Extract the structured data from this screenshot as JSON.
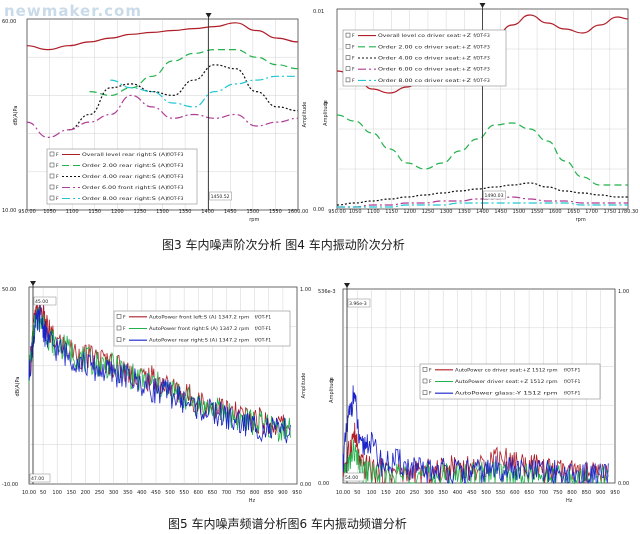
{
  "watermark": "newmaker.com",
  "captions": {
    "top": "图3 车内噪声阶次分析  图4 车内振动阶次分析",
    "bottom": "图5 车内噪声频谱分析图6 车内振动频谱分析"
  },
  "colors": {
    "red": "#b01e28",
    "green": "#22b24c",
    "black": "#111111",
    "purple": "#b03c96",
    "cyan": "#22c6d2",
    "blue": "#1a22c8",
    "grid": "#c8c8c8"
  },
  "chart_data": [
    {
      "type": "line",
      "xlabel": "rpm",
      "ylabel": [
        "Pa",
        "dB(A)"
      ],
      "right_label": "Amplitude",
      "yticks": [
        "60.00",
        "10.00"
      ],
      "xticks": [
        "950.00",
        "1050",
        "1100",
        "1150",
        "1200",
        "1250",
        "1300",
        "1350",
        "1400",
        "1450",
        "1500",
        "1550",
        "1600.00"
      ],
      "cursor_label": "1450.52",
      "x": [
        950,
        1000,
        1050,
        1100,
        1150,
        1200,
        1250,
        1300,
        1350,
        1400,
        1450,
        1500,
        1550,
        1600
      ],
      "ylim": [
        10,
        60
      ],
      "legend": [
        {
          "mark": "F",
          "text": "Overall level rear right:S (A)",
          "suffix": "f/OT-F3"
        },
        {
          "mark": "F",
          "text": "Order 2.00 rear right:S (A)",
          "suffix": "f/OT-F3"
        },
        {
          "mark": "F",
          "text": "Order 4.00 rear right:S (A)",
          "suffix": "f/OT-F3"
        },
        {
          "mark": "F",
          "text": "Order 6.00 front right:S (A)",
          "suffix": "f/OT-F3"
        },
        {
          "mark": "F",
          "text": "Order 8.00 rear right:S (A)",
          "suffix": "f/OT-F3"
        }
      ],
      "series": [
        {
          "color": "red",
          "style": "solid",
          "values": [
            53,
            52,
            53,
            54,
            55,
            56,
            56.5,
            57,
            57.5,
            58,
            59,
            57,
            55,
            54
          ]
        },
        {
          "color": "green",
          "style": "dashed",
          "values": [
            null,
            null,
            null,
            41,
            40,
            42,
            45,
            49,
            51,
            52,
            52,
            50,
            48,
            47
          ]
        },
        {
          "color": "black",
          "style": "dotted",
          "values": [
            null,
            null,
            31,
            35,
            42,
            43,
            41,
            40,
            44,
            48,
            47,
            41,
            37,
            36
          ]
        },
        {
          "color": "purple",
          "style": "dashdot",
          "values": [
            33,
            29,
            31,
            33,
            35,
            40,
            37,
            34,
            35,
            34,
            35,
            32,
            33,
            34
          ]
        },
        {
          "color": "cyan",
          "style": "dashdot",
          "values": [
            null,
            null,
            null,
            null,
            44,
            42,
            41,
            38,
            37,
            41,
            43,
            44,
            45,
            45
          ]
        }
      ]
    },
    {
      "type": "line",
      "xlabel": "rpm",
      "ylabel": [
        "g",
        "Amplitude"
      ],
      "yticks": [
        "0.01",
        "0.00"
      ],
      "xticks": [
        "950.00",
        "1050",
        "1100",
        "1150",
        "1200",
        "1250",
        "1300",
        "1350",
        "1400",
        "1450",
        "1500",
        "1550",
        "1600",
        "1650",
        "1700",
        "1750",
        "1780.30"
      ],
      "cursor_label": "1490.03",
      "x": [
        950,
        1000,
        1050,
        1100,
        1150,
        1200,
        1250,
        1300,
        1350,
        1400,
        1450,
        1500,
        1550,
        1600,
        1650,
        1700,
        1750,
        1780
      ],
      "ylim": [
        0,
        0.01
      ],
      "legend": [
        {
          "mark": "F",
          "text": "Overall level co driver seat:+Z",
          "suffix": "f/OT-F3"
        },
        {
          "mark": "F",
          "text": "Order 2.00 co driver seat:+Z",
          "suffix": "f/OT-F3"
        },
        {
          "mark": "F",
          "text": "Order 4.00 co driver seat:+Z",
          "suffix": "f/OT-F3"
        },
        {
          "mark": "F",
          "text": "Order 6.00 co driver seat:+Z",
          "suffix": "f/OT-F3"
        },
        {
          "mark": "F",
          "text": "Order 8.00 co driver seat:+Z",
          "suffix": "f/OT-F3"
        }
      ],
      "series": [
        {
          "color": "red",
          "style": "solid",
          "values": [
            0.0069,
            0.0067,
            0.006,
            0.0058,
            0.0061,
            0.0066,
            0.007,
            0.0074,
            0.008,
            0.0086,
            0.0092,
            0.0097,
            0.0093,
            0.009,
            0.0088,
            0.0092,
            0.0096,
            0.0095
          ]
        },
        {
          "color": "green",
          "style": "dashed",
          "values": [
            0.0047,
            0.0044,
            0.0038,
            0.003,
            0.0023,
            0.002,
            0.0023,
            0.0029,
            0.0035,
            0.0042,
            0.0043,
            0.004,
            0.0034,
            0.0024,
            0.0016,
            0.0012,
            0.0012,
            0.0012
          ]
        },
        {
          "color": "black",
          "style": "dotted",
          "values": [
            0.0002,
            0.0003,
            0.0004,
            0.0005,
            0.0006,
            0.0007,
            0.0008,
            0.0009,
            0.001,
            0.0011,
            0.0012,
            0.0013,
            0.0011,
            0.0009,
            0.0008,
            0.0007,
            0.0006,
            0.0006
          ]
        },
        {
          "color": "purple",
          "style": "dashdot",
          "values": [
            0.0001,
            0.0001,
            0.0002,
            0.0002,
            0.0003,
            0.0003,
            0.0004,
            0.0004,
            0.0005,
            0.0005,
            0.0006,
            0.0005,
            0.0004,
            0.0004,
            0.0003,
            0.0003,
            0.0003,
            0.0003
          ]
        },
        {
          "color": "cyan",
          "style": "dashdot",
          "values": [
            0.0001,
            0.0001,
            0.0001,
            0.0001,
            0.0002,
            0.0002,
            0.0002,
            0.0003,
            0.0003,
            0.0003,
            0.0003,
            0.0003,
            0.0003,
            0.0003,
            0.0002,
            0.0002,
            0.0002,
            0.0002
          ]
        }
      ]
    },
    {
      "type": "line",
      "xlabel": "Hz",
      "ylabel": [
        "Pa",
        "dB(A)"
      ],
      "right_label": "Amplitude",
      "yticks": [
        "50.00",
        "-10.00"
      ],
      "right_ticks": [
        "1.00",
        "0.00"
      ],
      "xticks": [
        "10.00",
        "50",
        "100",
        "150",
        "200",
        "250",
        "300",
        "350",
        "400",
        "450",
        "500",
        "550",
        "600",
        "650",
        "700",
        "750",
        "800",
        "850",
        "900",
        "950"
      ],
      "cursor_label": "45.00",
      "x_readout": "47.00",
      "xlim": [
        10,
        970
      ],
      "ylim": [
        -10,
        50
      ],
      "legend": [
        {
          "mark": "F",
          "text": "AutoPower front left:S (A) 1347.2 rpm",
          "suffix": "f/OT-F1"
        },
        {
          "mark": "F",
          "text": "AutoPower front right:S (A) 1347.2 rpm",
          "suffix": "f/OT-F1"
        },
        {
          "mark": "F",
          "text": "AutoPower rear right:S (A) 1347.2 rpm",
          "suffix": "f/OT-F1"
        }
      ],
      "series": [
        {
          "color": "red",
          "x": [
            10,
            30,
            50,
            70,
            100,
            150,
            200,
            250,
            300,
            350,
            400,
            450,
            500,
            550,
            600,
            650,
            700,
            750,
            800,
            850,
            900,
            950
          ],
          "values": [
            25,
            40,
            44,
            38,
            34,
            31,
            29,
            28,
            27,
            25,
            23,
            22,
            20,
            18,
            16,
            14,
            13,
            11,
            10,
            9,
            8,
            8
          ]
        },
        {
          "color": "green",
          "x": [
            10,
            30,
            50,
            70,
            100,
            150,
            200,
            250,
            300,
            350,
            400,
            450,
            500,
            550,
            600,
            650,
            700,
            750,
            800,
            850,
            900,
            950
          ],
          "values": [
            24,
            38,
            42,
            36,
            33,
            31,
            28,
            27,
            26,
            24,
            22,
            21,
            19,
            17,
            15,
            13,
            12,
            10,
            9,
            8,
            7,
            7
          ]
        },
        {
          "color": "blue",
          "x": [
            10,
            30,
            50,
            70,
            100,
            150,
            200,
            250,
            300,
            350,
            400,
            450,
            500,
            550,
            600,
            650,
            700,
            750,
            800,
            850,
            900,
            950
          ],
          "values": [
            23,
            37,
            41,
            35,
            32,
            29,
            27,
            25,
            24,
            23,
            21,
            19,
            18,
            16,
            14,
            12,
            11,
            9,
            8,
            7,
            6,
            6
          ]
        }
      ]
    },
    {
      "type": "line",
      "xlabel": "Hz",
      "ylabel": [
        "g",
        "Amplitude"
      ],
      "yticks": [
        "536e-3",
        "0.00"
      ],
      "right_ticks": [
        "1.00",
        "0.00"
      ],
      "xticks": [
        "10.00",
        "50",
        "100",
        "150",
        "200",
        "250",
        "300",
        "350",
        "400",
        "450",
        "500",
        "550",
        "600",
        "650",
        "700",
        "750",
        "800",
        "850",
        "900",
        "950"
      ],
      "cursor_label": "3.96e-3",
      "x_readout": "54.00",
      "xlim": [
        10,
        970
      ],
      "ylim": [
        0,
        0.536
      ],
      "legend": [
        {
          "mark": "F",
          "text": "AutoPower co driver seat:+Z 1512 rpm",
          "suffix": "f/OT-F1"
        },
        {
          "mark": "F",
          "text": "AutoPower driver seat:+Z 1512 rpm",
          "suffix": "f/OT-F1"
        },
        {
          "mark": "F",
          "text": "AutoPower glass:-Y 1512 rpm",
          "suffix": "f/OT-F1"
        }
      ],
      "series": [
        {
          "color": "red",
          "x": [
            10,
            30,
            50,
            70,
            100,
            150,
            200,
            250,
            300,
            350,
            400,
            450,
            500,
            550,
            600,
            650,
            700,
            750,
            800,
            850,
            900,
            950
          ],
          "values": [
            0.03,
            0.08,
            0.14,
            0.05,
            0.04,
            0.03,
            0.03,
            0.02,
            0.03,
            0.03,
            0.05,
            0.04,
            0.04,
            0.08,
            0.06,
            0.05,
            0.04,
            0.03,
            0.03,
            0.02,
            0.02,
            0.02
          ]
        },
        {
          "color": "green",
          "x": [
            10,
            30,
            50,
            70,
            100,
            150,
            200,
            250,
            300,
            350,
            400,
            450,
            500,
            550,
            600,
            650,
            700,
            750,
            800,
            850,
            900,
            950
          ],
          "values": [
            0.02,
            0.05,
            0.09,
            0.03,
            0.03,
            0.02,
            0.02,
            0.02,
            0.02,
            0.02,
            0.02,
            0.02,
            0.03,
            0.03,
            0.02,
            0.02,
            0.02,
            0.02,
            0.01,
            0.01,
            0.01,
            0.01
          ]
        },
        {
          "color": "blue",
          "x": [
            10,
            30,
            50,
            70,
            100,
            150,
            200,
            250,
            300,
            350,
            400,
            450,
            500,
            550,
            600,
            650,
            700,
            750,
            800,
            850,
            900,
            950
          ],
          "values": [
            0.06,
            0.18,
            0.25,
            0.09,
            0.12,
            0.05,
            0.06,
            0.04,
            0.03,
            0.04,
            0.03,
            0.03,
            0.03,
            0.04,
            0.04,
            0.03,
            0.03,
            0.03,
            0.02,
            0.02,
            0.02,
            0.02
          ]
        }
      ]
    }
  ]
}
